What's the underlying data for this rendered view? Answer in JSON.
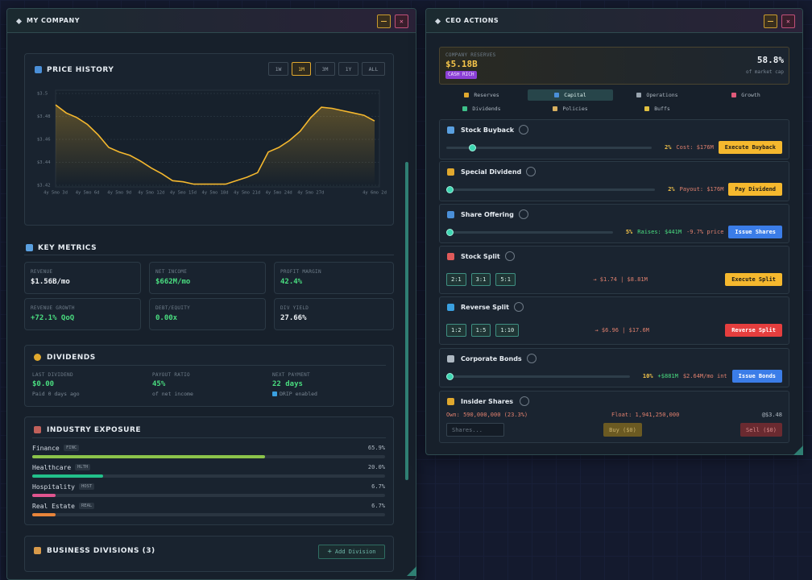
{
  "company": {
    "title": "MY COMPANY",
    "price_history": {
      "ranges": [
        "1W",
        "1M",
        "3M",
        "1Y",
        "ALL"
      ],
      "active_range": 1
    },
    "key_metrics": {
      "title": "KEY METRICS",
      "items": [
        {
          "label": "REVENUE",
          "value": "$1.56B/mo",
          "color": "#eef2f6"
        },
        {
          "label": "NET INCOME",
          "value": "$662M/mo",
          "color": "#4ade80"
        },
        {
          "label": "PROFIT MARGIN",
          "value": "42.4%",
          "color": "#4ade80"
        },
        {
          "label": "REVENUE GROWTH",
          "value": "+72.1% QoQ",
          "color": "#4ade80"
        },
        {
          "label": "DEBT/EQUITY",
          "value": "0.00x",
          "color": "#4ade80"
        },
        {
          "label": "DIV YIELD",
          "value": "27.66%",
          "color": "#eef2f6"
        }
      ]
    },
    "dividends": {
      "title": "DIVIDENDS",
      "items": [
        {
          "label": "LAST DIVIDEND",
          "value": "$0.00",
          "note": "Paid 0 days ago"
        },
        {
          "label": "PAYOUT RATIO",
          "value": "45%",
          "note": "of net income"
        },
        {
          "label": "NEXT PAYMENT",
          "value": "22 days",
          "note": "DRIP enabled"
        }
      ]
    },
    "industry": {
      "title": "INDUSTRY EXPOSURE",
      "items": [
        {
          "name": "Finance",
          "code": "FINC",
          "value": 65.9,
          "label": "65.9%",
          "color": "#8bc34a"
        },
        {
          "name": "Healthcare",
          "code": "HLTH",
          "value": 20.0,
          "label": "20.0%",
          "color": "#22c08a"
        },
        {
          "name": "Hospitality",
          "code": "HOST",
          "value": 6.7,
          "label": "6.7%",
          "color": "#e0558f"
        },
        {
          "name": "Real Estate",
          "code": "REAL",
          "value": 6.7,
          "label": "6.7%",
          "color": "#e8843a"
        }
      ]
    },
    "divisions": {
      "title": "BUSINESS DIVISIONS (3)",
      "button": "Add Division"
    }
  },
  "chart_data": {
    "type": "line",
    "title": "PRICE HISTORY",
    "categories": [
      "4y 5mo 3d",
      null,
      null,
      "4y 5mo 6d",
      null,
      null,
      "4y 5mo 9d",
      null,
      null,
      "4y 5mo 12d",
      null,
      null,
      "4y 5mo 15d",
      null,
      null,
      "4y 5mo 18d",
      null,
      null,
      "4y 5mo 21d",
      null,
      null,
      "4y 5mo 24d",
      null,
      null,
      "4y 5mo 27d",
      null,
      null,
      null,
      null,
      null,
      "4y 6mo 2d"
    ],
    "values": [
      3.49,
      3.483,
      3.479,
      3.473,
      3.464,
      3.453,
      3.449,
      3.446,
      3.441,
      3.435,
      3.43,
      3.424,
      3.423,
      3.421,
      3.421,
      3.421,
      3.421,
      3.424,
      3.427,
      3.431,
      3.449,
      3.453,
      3.459,
      3.467,
      3.479,
      3.488,
      3.487,
      3.485,
      3.483,
      3.481,
      3.476
    ],
    "color": "#f5b82e",
    "ylim": [
      3.42,
      3.5
    ],
    "yticks": [
      {
        "value": 3.5,
        "label": "$3.5"
      },
      {
        "value": 3.48,
        "label": "$3.48"
      },
      {
        "value": 3.46,
        "label": "$3.46"
      },
      {
        "value": 3.44,
        "label": "$3.44"
      },
      {
        "value": 3.42,
        "label": "$3.42"
      }
    ],
    "grid": true
  },
  "ceo": {
    "title": "CEO ACTIONS",
    "reserves": {
      "label": "COMPANY RESERVES",
      "value": "$5.18B",
      "badge": "CASH RICH",
      "ratio": "58.8%",
      "ratio_note": "of market cap"
    },
    "tabs": [
      "Reserves",
      "Capital",
      "Operations",
      "Growth",
      "Dividends",
      "Policies",
      "Buffs"
    ],
    "active_tab": 1,
    "actions": [
      {
        "title": "Stock Buyback",
        "pct": "2%",
        "details": [
          {
            "text": "Cost: $176M",
            "color": "#e0806e"
          }
        ],
        "button": "Execute Buyback",
        "button_color": "#f5b82e"
      },
      {
        "title": "Special Dividend",
        "pct": "2%",
        "details": [
          {
            "text": "Payout: $176M",
            "color": "#e0806e"
          }
        ],
        "button": "Pay Dividend",
        "button_color": "#f5b82e"
      },
      {
        "title": "Share Offering",
        "pct": "5%",
        "details": [
          {
            "text": "Raises: $441M",
            "color": "#4ade80"
          },
          {
            "text": "-9.7% price",
            "color": "#e0806e"
          }
        ],
        "button": "Issue Shares",
        "button_color": "#3b7de8"
      },
      {
        "title": "Stock Split",
        "options": [
          "2:1",
          "3:1",
          "5:1"
        ],
        "details": [
          {
            "text": "→ $1.74 | $8.81M",
            "color": "#e0806e"
          }
        ],
        "button": "Execute Split",
        "button_color": "#f5b82e"
      },
      {
        "title": "Reverse Split",
        "options": [
          "1:2",
          "1:5",
          "1:10"
        ],
        "details": [
          {
            "text": "→ $6.96 | $17.6M",
            "color": "#e0806e"
          }
        ],
        "button": "Reverse Split",
        "button_color": "#e53e3e"
      },
      {
        "title": "Corporate Bonds",
        "pct": "10%",
        "details": [
          {
            "text": "+$881M",
            "color": "#4ade80"
          },
          {
            "text": "$2.64M/mo int",
            "color": "#e0806e"
          }
        ],
        "button": "Issue Bonds",
        "button_color": "#3b7de8"
      }
    ],
    "insider": {
      "title": "Insider Shares",
      "own": "Own: 590,000,000 (23.3%)",
      "float": "Float: 1,941,250,000",
      "price": "@$3.48",
      "placeholder": "Shares...",
      "buy": "Buy ($0)",
      "sell": "Sell ($0)"
    }
  }
}
